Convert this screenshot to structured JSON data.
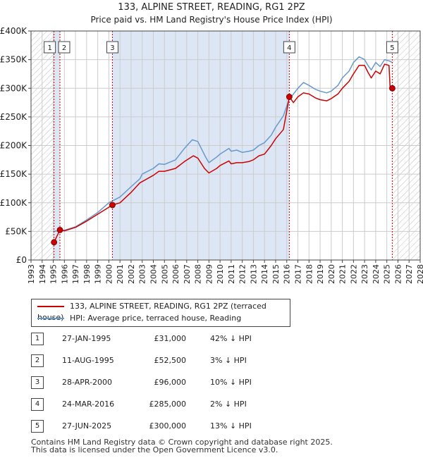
{
  "chart_data": {
    "type": "line",
    "title": "133, ALPINE STREET, READING, RG1 2PZ",
    "subtitle": "Price paid vs. HM Land Registry's House Price Index (HPI)",
    "xlim": [
      1993,
      2028
    ],
    "ylim": [
      0,
      400000
    ],
    "x_ticks": [
      "1993",
      "1994",
      "1995",
      "1996",
      "1997",
      "1998",
      "1999",
      "2000",
      "2001",
      "2002",
      "2003",
      "2004",
      "2005",
      "2006",
      "2007",
      "2008",
      "2009",
      "2010",
      "2011",
      "2012",
      "2013",
      "2014",
      "2015",
      "2016",
      "2017",
      "2018",
      "2019",
      "2020",
      "2021",
      "2022",
      "2023",
      "2024",
      "2025",
      "2026",
      "2027",
      "2028"
    ],
    "y_ticks": [
      {
        "value": 0,
        "label": "£0"
      },
      {
        "value": 50000,
        "label": "£50K"
      },
      {
        "value": 100000,
        "label": "£100K"
      },
      {
        "value": 150000,
        "label": "£150K"
      },
      {
        "value": 200000,
        "label": "£200K"
      },
      {
        "value": 250000,
        "label": "£250K"
      },
      {
        "value": 300000,
        "label": "£300K"
      },
      {
        "value": 350000,
        "label": "£350K"
      },
      {
        "value": 400000,
        "label": "£400K"
      }
    ],
    "colors": {
      "property": "#cc0000",
      "hpi": "#6699cc",
      "band": "#dde6f5",
      "grid": "#cccccc"
    },
    "series": [
      {
        "name": "133, ALPINE STREET, READING, RG1 2PZ (terraced house)",
        "color": "#cc0000",
        "points": [
          [
            1995.07,
            31000
          ],
          [
            1995.6,
            52500
          ],
          [
            1996,
            51000
          ],
          [
            1997,
            57000
          ],
          [
            1998,
            68000
          ],
          [
            1999,
            80000
          ],
          [
            2000.32,
            96000
          ],
          [
            2001,
            100000
          ],
          [
            2002,
            118000
          ],
          [
            2002.8,
            135000
          ],
          [
            2003,
            137000
          ],
          [
            2004,
            148000
          ],
          [
            2004.5,
            155000
          ],
          [
            2005,
            155000
          ],
          [
            2006,
            160000
          ],
          [
            2006.8,
            172000
          ],
          [
            2007.6,
            182000
          ],
          [
            2008,
            178000
          ],
          [
            2008.6,
            160000
          ],
          [
            2009,
            152000
          ],
          [
            2009.7,
            160000
          ],
          [
            2010,
            165000
          ],
          [
            2010.8,
            173000
          ],
          [
            2011,
            168000
          ],
          [
            2011.5,
            170000
          ],
          [
            2012,
            170000
          ],
          [
            2012.6,
            172000
          ],
          [
            2013,
            175000
          ],
          [
            2013.5,
            182000
          ],
          [
            2014,
            185000
          ],
          [
            2014.6,
            200000
          ],
          [
            2015,
            212000
          ],
          [
            2015.7,
            228000
          ],
          [
            2016.23,
            285000
          ],
          [
            2016.6,
            275000
          ],
          [
            2017,
            285000
          ],
          [
            2017.5,
            292000
          ],
          [
            2018,
            290000
          ],
          [
            2018.6,
            283000
          ],
          [
            2019,
            280000
          ],
          [
            2019.6,
            278000
          ],
          [
            2020,
            282000
          ],
          [
            2020.6,
            290000
          ],
          [
            2021,
            300000
          ],
          [
            2021.6,
            312000
          ],
          [
            2022,
            325000
          ],
          [
            2022.5,
            340000
          ],
          [
            2023,
            340000
          ],
          [
            2023.3,
            328000
          ],
          [
            2023.6,
            318000
          ],
          [
            2024,
            330000
          ],
          [
            2024.4,
            325000
          ],
          [
            2024.8,
            342000
          ],
          [
            2025.2,
            340000
          ],
          [
            2025.3,
            300000
          ],
          [
            2025.49,
            300000
          ]
        ]
      },
      {
        "name": "HPI: Average price, terraced house, Reading",
        "color": "#6699cc",
        "points": [
          [
            1995,
            50000
          ],
          [
            1996,
            52000
          ],
          [
            1997,
            58000
          ],
          [
            1998,
            70000
          ],
          [
            1999,
            83000
          ],
          [
            2000,
            100000
          ],
          [
            2001,
            110000
          ],
          [
            2002,
            128000
          ],
          [
            2002.8,
            142000
          ],
          [
            2003,
            150000
          ],
          [
            2004,
            160000
          ],
          [
            2004.5,
            168000
          ],
          [
            2005,
            167000
          ],
          [
            2006,
            175000
          ],
          [
            2006.8,
            195000
          ],
          [
            2007.5,
            210000
          ],
          [
            2008,
            207000
          ],
          [
            2008.7,
            180000
          ],
          [
            2009,
            170000
          ],
          [
            2009.7,
            180000
          ],
          [
            2010,
            185000
          ],
          [
            2010.8,
            195000
          ],
          [
            2011,
            190000
          ],
          [
            2011.5,
            192000
          ],
          [
            2012,
            188000
          ],
          [
            2012.6,
            190000
          ],
          [
            2013,
            192000
          ],
          [
            2013.5,
            200000
          ],
          [
            2014,
            205000
          ],
          [
            2014.6,
            218000
          ],
          [
            2015,
            232000
          ],
          [
            2015.7,
            252000
          ],
          [
            2016.2,
            280000
          ],
          [
            2016.6,
            290000
          ],
          [
            2017,
            300000
          ],
          [
            2017.5,
            310000
          ],
          [
            2018,
            305000
          ],
          [
            2018.6,
            298000
          ],
          [
            2019,
            295000
          ],
          [
            2019.6,
            292000
          ],
          [
            2020,
            295000
          ],
          [
            2020.6,
            305000
          ],
          [
            2021,
            318000
          ],
          [
            2021.6,
            330000
          ],
          [
            2022,
            345000
          ],
          [
            2022.5,
            355000
          ],
          [
            2023,
            350000
          ],
          [
            2023.3,
            340000
          ],
          [
            2023.6,
            332000
          ],
          [
            2024,
            345000
          ],
          [
            2024.4,
            338000
          ],
          [
            2024.8,
            350000
          ],
          [
            2025.2,
            348000
          ],
          [
            2025.5,
            345000
          ]
        ]
      }
    ],
    "sales": [
      {
        "num": "1",
        "x": 1995.07,
        "price": 31000,
        "date": "27-JAN-1995",
        "price_label": "£31,000",
        "hpi": "42% ↓ HPI"
      },
      {
        "num": "2",
        "x": 1995.6,
        "price": 52500,
        "date": "11-AUG-1995",
        "price_label": "£52,500",
        "hpi": "3% ↓ HPI"
      },
      {
        "num": "3",
        "x": 2000.32,
        "price": 96000,
        "date": "28-APR-2000",
        "price_label": "£96,000",
        "hpi": "10% ↓ HPI"
      },
      {
        "num": "4",
        "x": 2016.23,
        "price": 285000,
        "date": "24-MAR-2016",
        "price_label": "£285,000",
        "hpi": "2% ↓ HPI"
      },
      {
        "num": "5",
        "x": 2025.49,
        "price": 300000,
        "date": "27-JUN-2025",
        "price_label": "£300,000",
        "hpi": "13% ↓ HPI"
      }
    ],
    "shaded_bands": [
      [
        1995.07,
        1995.6
      ],
      [
        2000.32,
        2016.23
      ]
    ],
    "hatched_before": 1995,
    "hatched_after": 2025.49
  },
  "legend": {
    "property_label": "133, ALPINE STREET, READING, RG1 2PZ (terraced house)",
    "hpi_label": "HPI: Average price, terraced house, Reading"
  },
  "footer": {
    "line1": "Contains HM Land Registry data © Crown copyright and database right 2025.",
    "line2": "This data is licensed under the Open Government Licence v3.0."
  }
}
